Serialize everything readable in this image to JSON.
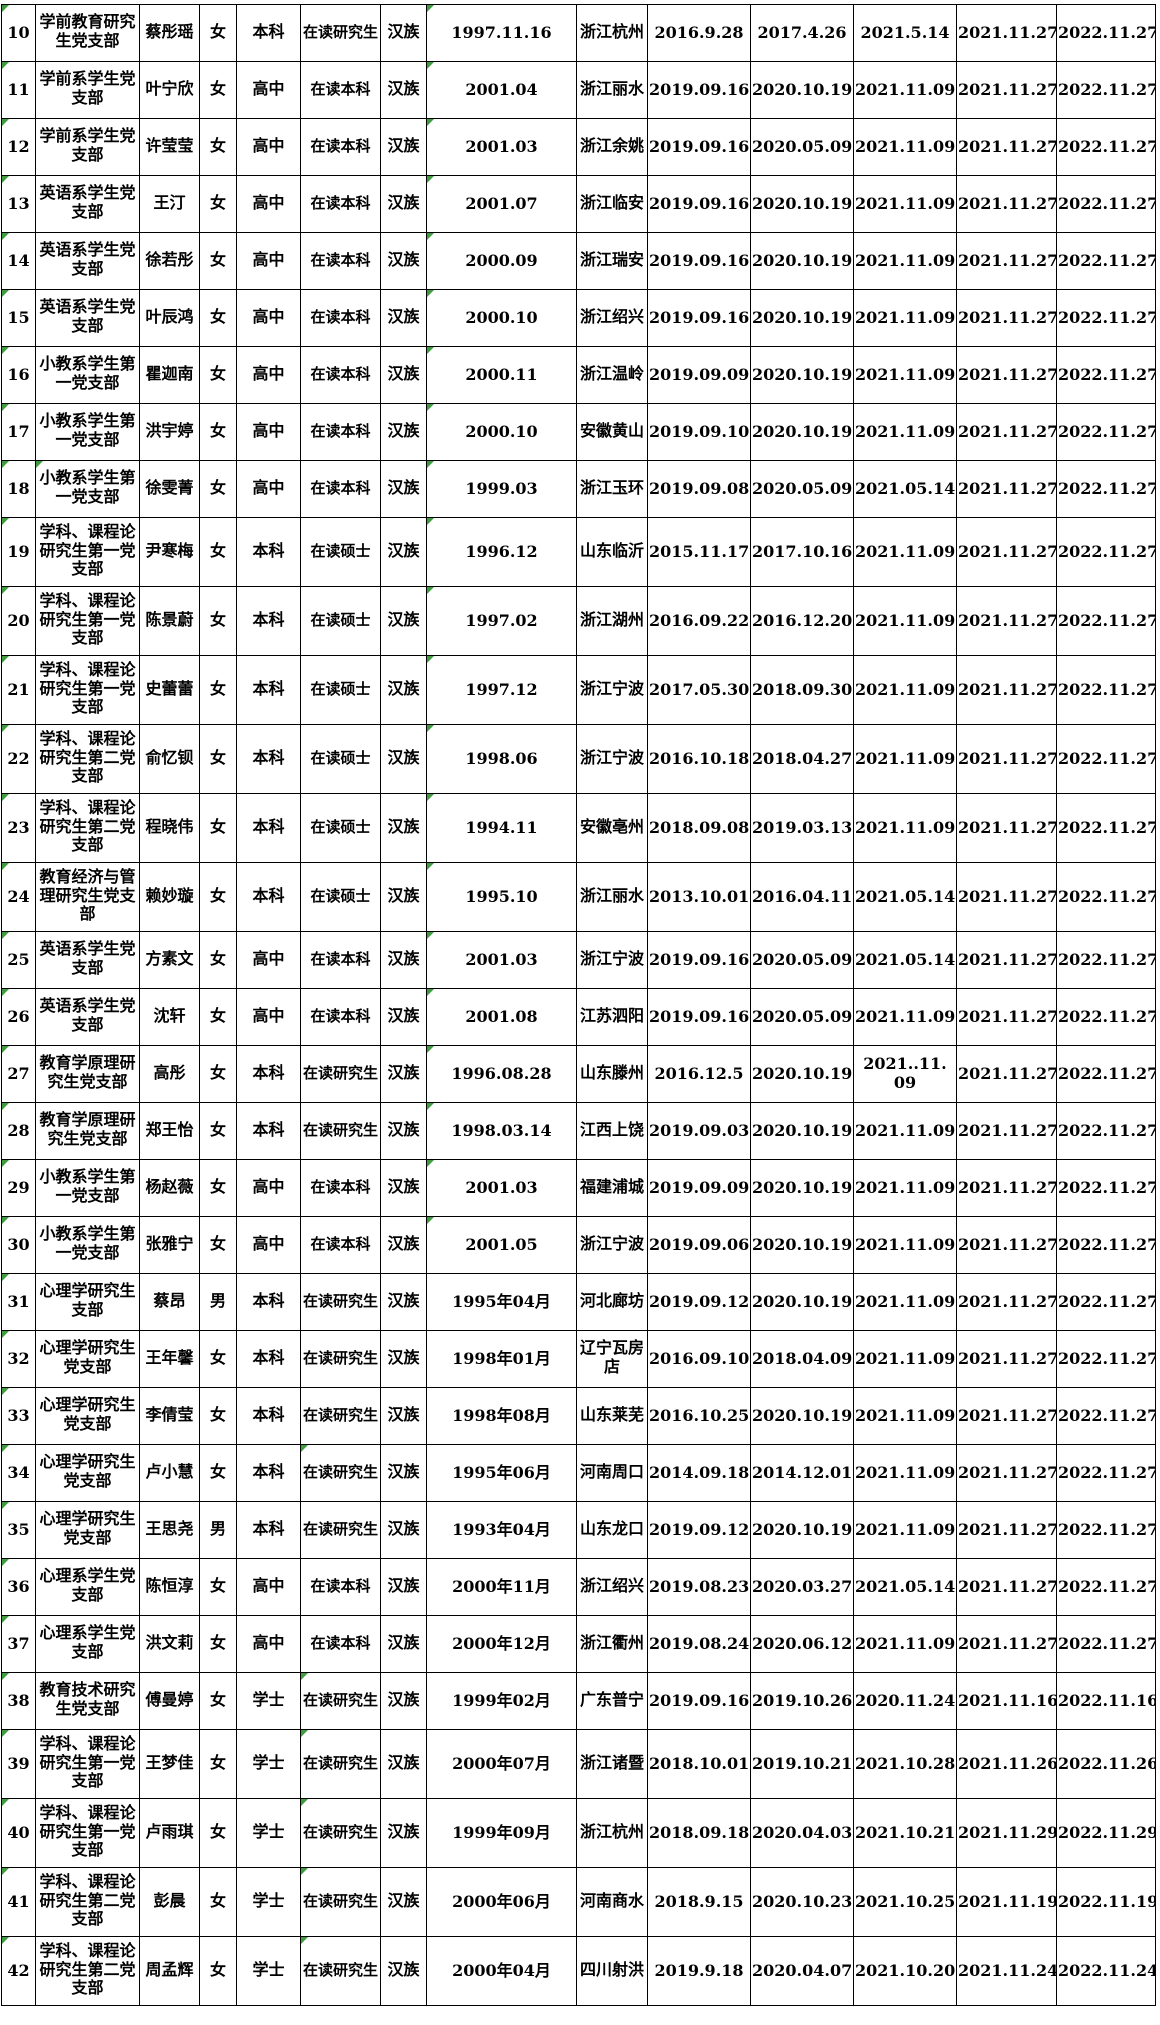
{
  "colors": {
    "grid": "#000000",
    "text": "#000000",
    "background": "#ffffff",
    "corner_mark": "#3f9c3f"
  },
  "table": {
    "rows": [
      {
        "cells": [
          "10",
          "学前教育研究生党支部",
          "蔡彤瑶",
          "女",
          "本科",
          "在读研究生",
          "汉族",
          "1997.11.16",
          "浙江杭州",
          "2016.9.28",
          "2017.4.26",
          "2021.5.14",
          "2021.11.27",
          "2022.11.27"
        ],
        "marks": [
          0,
          7
        ],
        "wrap": []
      },
      {
        "cells": [
          "11",
          "学前系学生党支部",
          "叶宁欣",
          "女",
          "高中",
          "在读本科",
          "汉族",
          "2001.04",
          "浙江丽水",
          "2019.09.16",
          "2020.10.19",
          "2021.11.09",
          "2021.11.27",
          "2022.11.27"
        ],
        "marks": [
          0,
          7
        ],
        "wrap": []
      },
      {
        "cells": [
          "12",
          "学前系学生党支部",
          "许莹莹",
          "女",
          "高中",
          "在读本科",
          "汉族",
          "2001.03",
          "浙江余姚",
          "2019.09.16",
          "2020.05.09",
          "2021.11.09",
          "2021.11.27",
          "2022.11.27"
        ],
        "marks": [
          0,
          7
        ],
        "wrap": []
      },
      {
        "cells": [
          "13",
          "英语系学生党支部",
          "王汀",
          "女",
          "高中",
          "在读本科",
          "汉族",
          "2001.07",
          "浙江临安",
          "2019.09.16",
          "2020.10.19",
          "2021.11.09",
          "2021.11.27",
          "2022.11.27"
        ],
        "marks": [
          0,
          7
        ],
        "wrap": []
      },
      {
        "cells": [
          "14",
          "英语系学生党支部",
          "徐若彤",
          "女",
          "高中",
          "在读本科",
          "汉族",
          "2000.09",
          "浙江瑞安",
          "2019.09.16",
          "2020.10.19",
          "2021.11.09",
          "2021.11.27",
          "2022.11.27"
        ],
        "marks": [
          0,
          7
        ],
        "wrap": []
      },
      {
        "cells": [
          "15",
          "英语系学生党支部",
          "叶辰鸿",
          "女",
          "高中",
          "在读本科",
          "汉族",
          "2000.10",
          "浙江绍兴",
          "2019.09.16",
          "2020.10.19",
          "2021.11.09",
          "2021.11.27",
          "2022.11.27"
        ],
        "marks": [
          0,
          7
        ],
        "wrap": []
      },
      {
        "cells": [
          "16",
          "小教系学生第一党支部",
          "瞿迦南",
          "女",
          "高中",
          "在读本科",
          "汉族",
          "2000.11",
          "浙江温岭",
          "2019.09.09",
          "2020.10.19",
          "2021.11.09",
          "2021.11.27",
          "2022.11.27"
        ],
        "marks": [
          0,
          7
        ],
        "wrap": []
      },
      {
        "cells": [
          "17",
          "小教系学生第一党支部",
          "洪宇婷",
          "女",
          "高中",
          "在读本科",
          "汉族",
          "2000.10",
          "安徽黄山",
          "2019.09.10",
          "2020.10.19",
          "2021.11.09",
          "2021.11.27",
          "2022.11.27"
        ],
        "marks": [
          0,
          7
        ],
        "wrap": []
      },
      {
        "cells": [
          "18",
          "小教系学生第一党支部",
          "徐雯菁",
          "女",
          "高中",
          "在读本科",
          "汉族",
          "1999.03",
          "浙江玉环",
          "2019.09.08",
          "2020.05.09",
          "2021.05.14",
          "2021.11.27",
          "2022.11.27"
        ],
        "marks": [
          0,
          1,
          7
        ],
        "wrap": []
      },
      {
        "cells": [
          "19",
          "学科、课程论研究生第一党支部",
          "尹寒梅",
          "女",
          "本科",
          "在读硕士",
          "汉族",
          "1996.12",
          "山东临沂",
          "2015.11.17",
          "2017.10.16",
          "2021.11.09",
          "2021.11.27",
          "2022.11.27"
        ],
        "marks": [
          0,
          7
        ],
        "wrap": []
      },
      {
        "cells": [
          "20",
          "学科、课程论研究生第一党支部",
          "陈景蔚",
          "女",
          "本科",
          "在读硕士",
          "汉族",
          "1997.02",
          "浙江湖州",
          "2016.09.22",
          "2016.12.20",
          "2021.11.09",
          "2021.11.27",
          "2022.11.27"
        ],
        "marks": [
          0,
          7
        ],
        "wrap": []
      },
      {
        "cells": [
          "21",
          "学科、课程论研究生第一党支部",
          "史蕾蕾",
          "女",
          "本科",
          "在读硕士",
          "汉族",
          "1997.12",
          "浙江宁波",
          "2017.05.30",
          "2018.09.30",
          "2021.11.09",
          "2021.11.27",
          "2022.11.27"
        ],
        "marks": [
          0,
          7
        ],
        "wrap": []
      },
      {
        "cells": [
          "22",
          "学科、课程论研究生第二党支部",
          "俞忆钡",
          "女",
          "本科",
          "在读硕士",
          "汉族",
          "1998.06",
          "浙江宁波",
          "2016.10.18",
          "2018.04.27",
          "2021.11.09",
          "2021.11.27",
          "2022.11.27"
        ],
        "marks": [
          0,
          7
        ],
        "wrap": []
      },
      {
        "cells": [
          "23",
          "学科、课程论研究生第二党支部",
          "程晓伟",
          "女",
          "本科",
          "在读硕士",
          "汉族",
          "1994.11",
          "安徽亳州",
          "2018.09.08",
          "2019.03.13",
          "2021.11.09",
          "2021.11.27",
          "2022.11.27"
        ],
        "marks": [
          0,
          7
        ],
        "wrap": []
      },
      {
        "cells": [
          "24",
          "教育经济与管理研究生党支部",
          "赖妙璇",
          "女",
          "本科",
          "在读硕士",
          "汉族",
          "1995.10",
          "浙江丽水",
          "2013.10.01",
          "2016.04.11",
          "2021.05.14",
          "2021.11.27",
          "2022.11.27"
        ],
        "marks": [
          0,
          7
        ],
        "wrap": []
      },
      {
        "cells": [
          "25",
          "英语系学生党支部",
          "方素文",
          "女",
          "高中",
          "在读本科",
          "汉族",
          "2001.03",
          "浙江宁波",
          "2019.09.16",
          "2020.05.09",
          "2021.05.14",
          "2021.11.27",
          "2022.11.27"
        ],
        "marks": [
          0,
          7
        ],
        "wrap": []
      },
      {
        "cells": [
          "26",
          "英语系学生党支部",
          "沈轩",
          "女",
          "高中",
          "在读本科",
          "汉族",
          "2001.08",
          "江苏泗阳",
          "2019.09.16",
          "2020.05.09",
          "2021.11.09",
          "2021.11.27",
          "2022.11.27"
        ],
        "marks": [
          0,
          7
        ],
        "wrap": []
      },
      {
        "cells": [
          "27",
          "教育学原理研究生党支部",
          "高彤",
          "女",
          "本科",
          "在读研究生",
          "汉族",
          "1996.08.28",
          "山东滕州",
          "2016.12.5",
          "2020.10.19",
          "2021..11.09",
          "2021.11.27",
          "2022.11.27"
        ],
        "marks": [
          0,
          7
        ],
        "wrap": [
          11
        ]
      },
      {
        "cells": [
          "28",
          "教育学原理研究生党支部",
          "郑王怡",
          "女",
          "本科",
          "在读研究生",
          "汉族",
          "1998.03.14",
          "江西上饶",
          "2019.09.03",
          "2020.10.19",
          "2021.11.09",
          "2021.11.27",
          "2022.11.27"
        ],
        "marks": [
          0,
          7
        ],
        "wrap": []
      },
      {
        "cells": [
          "29",
          "小教系学生第一党支部",
          "杨赵薇",
          "女",
          "高中",
          "在读本科",
          "汉族",
          "2001.03",
          "福建浦城",
          "2019.09.09",
          "2020.10.19",
          "2021.11.09",
          "2021.11.27",
          "2022.11.27"
        ],
        "marks": [
          0,
          7
        ],
        "wrap": []
      },
      {
        "cells": [
          "30",
          "小教系学生第一党支部",
          "张雅宁",
          "女",
          "高中",
          "在读本科",
          "汉族",
          "2001.05",
          "浙江宁波",
          "2019.09.06",
          "2020.10.19",
          "2021.11.09",
          "2021.11.27",
          "2022.11.27"
        ],
        "marks": [
          0,
          7
        ],
        "wrap": []
      },
      {
        "cells": [
          "31",
          "心理学研究生支部",
          "蔡昂",
          "男",
          "本科",
          "在读研究生",
          "汉族",
          "1995年04月",
          "河北廊坊",
          "2019.09.12",
          "2020.10.19",
          "2021.11.09",
          "2021.11.27",
          "2022.11.27"
        ],
        "marks": [
          0
        ],
        "wrap": []
      },
      {
        "cells": [
          "32",
          "心理学研究生党支部",
          "王年馨",
          "女",
          "本科",
          "在读研究生",
          "汉族",
          "1998年01月",
          "辽宁瓦房店",
          "2016.09.10",
          "2018.04.09",
          "2021.11.09",
          "2021.11.27",
          "2022.11.27"
        ],
        "marks": [
          0
        ],
        "wrap": []
      },
      {
        "cells": [
          "33",
          "心理学研究生党支部",
          "李倩莹",
          "女",
          "本科",
          "在读研究生",
          "汉族",
          "1998年08月",
          "山东莱芜",
          "2016.10.25",
          "2020.10.19",
          "2021.11.09",
          "2021.11.27",
          "2022.11.27"
        ],
        "marks": [
          0
        ],
        "wrap": []
      },
      {
        "cells": [
          "34",
          "心理学研究生党支部",
          "卢小慧",
          "女",
          "本科",
          "在读研究生",
          "汉族",
          "1995年06月",
          "河南周口",
          "2014.09.18",
          "2014.12.01",
          "2021.11.09",
          "2021.11.27",
          "2022.11.27"
        ],
        "marks": [
          0,
          5
        ],
        "wrap": []
      },
      {
        "cells": [
          "35",
          "心理学研究生党支部",
          "王思尧",
          "男",
          "本科",
          "在读研究生",
          "汉族",
          "1993年04月",
          "山东龙口",
          "2019.09.12",
          "2020.10.19",
          "2021.11.09",
          "2021.11.27",
          "2022.11.27"
        ],
        "marks": [
          0
        ],
        "wrap": []
      },
      {
        "cells": [
          "36",
          "心理系学生党支部",
          "陈恒淳",
          "女",
          "高中",
          "在读本科",
          "汉族",
          "2000年11月",
          "浙江绍兴",
          "2019.08.23",
          "2020.03.27",
          "2021.05.14",
          "2021.11.27",
          "2022.11.27"
        ],
        "marks": [
          0
        ],
        "wrap": []
      },
      {
        "cells": [
          "37",
          "心理系学生党支部",
          "洪文莉",
          "女",
          "高中",
          "在读本科",
          "汉族",
          "2000年12月",
          "浙江衢州",
          "2019.08.24",
          "2020.06.12",
          "2021.11.09",
          "2021.11.27",
          "2022.11.27"
        ],
        "marks": [
          0
        ],
        "wrap": []
      },
      {
        "cells": [
          "38",
          "教育技术研究生党支部",
          "傅曼婷",
          "女",
          "学士",
          "在读研究生",
          "汉族",
          "1999年02月",
          "广东普宁",
          "2019.09.16",
          "2019.10.26",
          "2020.11.24",
          "2021.11.16",
          "2022.11.16"
        ],
        "marks": [
          0,
          5
        ],
        "wrap": []
      },
      {
        "cells": [
          "39",
          "学科、课程论研究生第一党支部",
          "王梦佳",
          "女",
          "学士",
          "在读研究生",
          "汉族",
          "2000年07月",
          "浙江诸暨",
          "2018.10.01",
          "2019.10.21",
          "2021.10.28",
          "2021.11.26",
          "2022.11.26"
        ],
        "marks": [
          0,
          5
        ],
        "wrap": []
      },
      {
        "cells": [
          "40",
          "学科、课程论研究生第一党支部",
          "卢雨琪",
          "女",
          "学士",
          "在读研究生",
          "汉族",
          "1999年09月",
          "浙江杭州",
          "2018.09.18",
          "2020.04.03",
          "2021.10.21",
          "2021.11.29",
          "2022.11.29"
        ],
        "marks": [
          0,
          5
        ],
        "wrap": []
      },
      {
        "cells": [
          "41",
          "学科、课程论研究生第二党支部",
          "彭晨",
          "女",
          "学士",
          "在读研究生",
          "汉族",
          "2000年06月",
          "河南商水",
          "2018.9.15",
          "2020.10.23",
          "2021.10.25",
          "2021.11.19",
          "2022.11.19"
        ],
        "marks": [
          0,
          5
        ],
        "wrap": []
      },
      {
        "cells": [
          "42",
          "学科、课程论研究生第二党支部",
          "周孟辉",
          "女",
          "学士",
          "在读研究生",
          "汉族",
          "2000年04月",
          "四川射洪",
          "2019.9.18",
          "2020.04.07",
          "2021.10.20",
          "2021.11.24",
          "2022.11.24"
        ],
        "marks": [
          0,
          5
        ],
        "wrap": []
      }
    ]
  }
}
